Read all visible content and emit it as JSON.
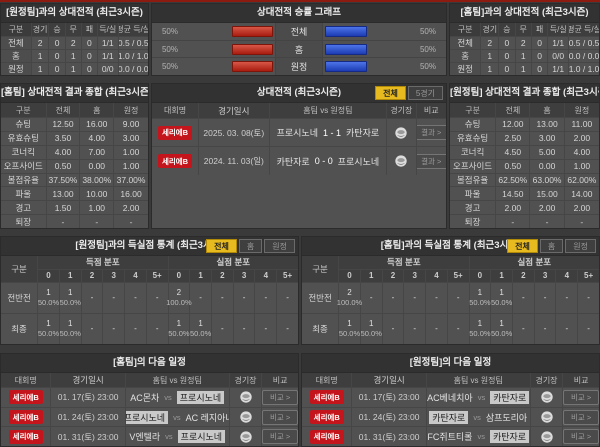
{
  "colors": {
    "separator_red": "#8e1b10",
    "league_badge_red": "#c3151b",
    "bar_red": "#b7271a",
    "bar_blue": "#2b4ecf",
    "tab_active_yellow": "#e7ba1f",
    "team_highlight": "#c9c9c9",
    "panel_bg": "#515151",
    "header_bg": "#323232"
  },
  "record_left": {
    "title": "[원정팀]과의 상대전적 (최근3시즌)",
    "headers": [
      "구분",
      "경기",
      "승",
      "무",
      "패",
      "득/실",
      "평균 득/실"
    ],
    "rows": [
      {
        "label": "전체",
        "v0": "2",
        "v1": "0",
        "v2": "2",
        "v3": "0",
        "v4": "1/1",
        "v5": "0.5 / 0.5"
      },
      {
        "label": "홈",
        "v0": "1",
        "v1": "0",
        "v2": "1",
        "v3": "0",
        "v4": "1/1",
        "v5": "1.0 / 1.0"
      },
      {
        "label": "원정",
        "v0": "1",
        "v1": "0",
        "v2": "1",
        "v3": "0",
        "v4": "0/0",
        "v5": "0.0 / 0.0"
      }
    ]
  },
  "graph": {
    "title": "상대전적 승률 그래프",
    "rows": [
      {
        "label": "전체",
        "left_pct": "50%",
        "right_pct": "50%",
        "left_value": 50,
        "right_value": 50
      },
      {
        "label": "홈",
        "left_pct": "50%",
        "right_pct": "50%",
        "left_value": 50,
        "right_value": 50
      },
      {
        "label": "원정",
        "left_pct": "50%",
        "right_pct": "50%",
        "left_value": 50,
        "right_value": 50
      }
    ]
  },
  "record_right": {
    "title": "[홈팀]과의 상대전적 (최근3시즌)",
    "headers": [
      "구분",
      "경기",
      "승",
      "무",
      "패",
      "득/실",
      "평균 득/실"
    ],
    "rows": [
      {
        "label": "전체",
        "v0": "2",
        "v1": "0",
        "v2": "2",
        "v3": "0",
        "v4": "1/1",
        "v5": "0.5 / 0.5"
      },
      {
        "label": "홈",
        "v0": "1",
        "v1": "0",
        "v2": "1",
        "v3": "0",
        "v4": "0/0",
        "v5": "0.0 / 0.0"
      },
      {
        "label": "원정",
        "v0": "1",
        "v1": "0",
        "v2": "1",
        "v3": "0",
        "v4": "1/1",
        "v5": "1.0 / 1.0"
      }
    ]
  },
  "summary_left": {
    "title": "[홈팀] 상대전적 결과 종합 (최근3시즌 평균)",
    "headers": [
      "구분",
      "전체",
      "홈",
      "원정"
    ],
    "rows": [
      {
        "label": "슈팅",
        "v0": "12.50",
        "v1": "16.00",
        "v2": "9.00"
      },
      {
        "label": "유효슈팅",
        "v0": "3.50",
        "v1": "4.00",
        "v2": "3.00"
      },
      {
        "label": "코너킥",
        "v0": "4.00",
        "v1": "7.00",
        "v2": "1.00"
      },
      {
        "label": "오프사이드",
        "v0": "0.50",
        "v1": "0.00",
        "v2": "1.00"
      },
      {
        "label": "볼점유율",
        "v0": "37.50%",
        "v1": "38.00%",
        "v2": "37.00%"
      },
      {
        "label": "파울",
        "v0": "13.00",
        "v1": "10.00",
        "v2": "16.00"
      },
      {
        "label": "경고",
        "v0": "1.50",
        "v1": "1.00",
        "v2": "2.00"
      },
      {
        "label": "퇴장",
        "v0": "-",
        "v1": "-",
        "v2": "-"
      }
    ]
  },
  "summary_right": {
    "title": "[원정팀] 상대전적 결과 종합 (최근3시즌 평균)",
    "headers": [
      "구분",
      "전체",
      "홈",
      "원정"
    ],
    "rows": [
      {
        "label": "슈팅",
        "v0": "12.00",
        "v1": "13.00",
        "v2": "11.00"
      },
      {
        "label": "유효슈팅",
        "v0": "2.50",
        "v1": "3.00",
        "v2": "2.00"
      },
      {
        "label": "코너킥",
        "v0": "4.50",
        "v1": "5.00",
        "v2": "4.00"
      },
      {
        "label": "오프사이드",
        "v0": "0.50",
        "v1": "0.00",
        "v2": "1.00"
      },
      {
        "label": "볼점유율",
        "v0": "62.50%",
        "v1": "63.00%",
        "v2": "62.00%"
      },
      {
        "label": "파울",
        "v0": "14.50",
        "v1": "15.00",
        "v2": "14.00"
      },
      {
        "label": "경고",
        "v0": "2.00",
        "v1": "2.00",
        "v2": "2.00"
      },
      {
        "label": "퇴장",
        "v0": "-",
        "v1": "-",
        "v2": "-"
      }
    ]
  },
  "h2h": {
    "title": "상대전적 (최근3시즌)",
    "tabs": [
      {
        "label": "전체"
      },
      {
        "label": "5경기"
      }
    ],
    "headers": {
      "league": "대회명",
      "datetime": "경기일시",
      "teams": "홈팀  vs  원정팀",
      "stadium": "경기장",
      "compare": "비교"
    },
    "matches": [
      {
        "league": "세리에B",
        "date": "2025. 03. 08(토)",
        "home": "프로시노네",
        "score": "1 - 1",
        "away": "카탄자로",
        "btn": "결과 >"
      },
      {
        "league": "세리에B",
        "date": "2024. 11. 03(일)",
        "home": "카탄자로",
        "score": "0 - 0",
        "away": "프로시노네",
        "btn": "결과 >"
      }
    ]
  },
  "goals_left": {
    "title": "[원정팀]과의 득실점 통계 (최근3시즌)",
    "tabs": [
      {
        "label": "전체"
      },
      {
        "label": "홈"
      },
      {
        "label": "원정"
      }
    ],
    "corner": "구분",
    "group_scored": "득점 분포",
    "group_conceded": "실점 분포",
    "cols": [
      "0",
      "1",
      "2",
      "3",
      "4",
      "5+"
    ],
    "rows": [
      {
        "label": "전반전",
        "s0": {
          "n": "1",
          "p": "50.0%"
        },
        "s1": {
          "n": "1",
          "p": "50.0%"
        },
        "s2": {
          "n": "-",
          "p": ""
        },
        "s3": {
          "n": "-",
          "p": ""
        },
        "s4": {
          "n": "-",
          "p": ""
        },
        "s5": {
          "n": "-",
          "p": ""
        },
        "c0": {
          "n": "2",
          "p": "100.0%"
        },
        "c1": {
          "n": "-",
          "p": ""
        },
        "c2": {
          "n": "-",
          "p": ""
        },
        "c3": {
          "n": "-",
          "p": ""
        },
        "c4": {
          "n": "-",
          "p": ""
        },
        "c5": {
          "n": "-",
          "p": ""
        }
      },
      {
        "label": "최종",
        "s0": {
          "n": "1",
          "p": "50.0%"
        },
        "s1": {
          "n": "1",
          "p": "50.0%"
        },
        "s2": {
          "n": "-",
          "p": ""
        },
        "s3": {
          "n": "-",
          "p": ""
        },
        "s4": {
          "n": "-",
          "p": ""
        },
        "s5": {
          "n": "-",
          "p": ""
        },
        "c0": {
          "n": "1",
          "p": "50.0%"
        },
        "c1": {
          "n": "1",
          "p": "50.0%"
        },
        "c2": {
          "n": "-",
          "p": ""
        },
        "c3": {
          "n": "-",
          "p": ""
        },
        "c4": {
          "n": "-",
          "p": ""
        },
        "c5": {
          "n": "-",
          "p": ""
        }
      }
    ]
  },
  "goals_right": {
    "title": "[홈팀]과의 득실점 통계 (최근3시즌)",
    "tabs": [
      {
        "label": "전체"
      },
      {
        "label": "홈"
      },
      {
        "label": "원정"
      }
    ],
    "corner": "구분",
    "group_scored": "득점 분포",
    "group_conceded": "실점 분포",
    "cols": [
      "0",
      "1",
      "2",
      "3",
      "4",
      "5+"
    ],
    "rows": [
      {
        "label": "전반전",
        "s0": {
          "n": "2",
          "p": "100.0%"
        },
        "s1": {
          "n": "-",
          "p": ""
        },
        "s2": {
          "n": "-",
          "p": ""
        },
        "s3": {
          "n": "-",
          "p": ""
        },
        "s4": {
          "n": "-",
          "p": ""
        },
        "s5": {
          "n": "-",
          "p": ""
        },
        "c0": {
          "n": "1",
          "p": "50.0%"
        },
        "c1": {
          "n": "1",
          "p": "50.0%"
        },
        "c2": {
          "n": "-",
          "p": ""
        },
        "c3": {
          "n": "-",
          "p": ""
        },
        "c4": {
          "n": "-",
          "p": ""
        },
        "c5": {
          "n": "-",
          "p": ""
        }
      },
      {
        "label": "최종",
        "s0": {
          "n": "1",
          "p": "50.0%"
        },
        "s1": {
          "n": "1",
          "p": "50.0%"
        },
        "s2": {
          "n": "-",
          "p": ""
        },
        "s3": {
          "n": "-",
          "p": ""
        },
        "s4": {
          "n": "-",
          "p": ""
        },
        "s5": {
          "n": "-",
          "p": ""
        },
        "c0": {
          "n": "1",
          "p": "50.0%"
        },
        "c1": {
          "n": "1",
          "p": "50.0%"
        },
        "c2": {
          "n": "-",
          "p": ""
        },
        "c3": {
          "n": "-",
          "p": ""
        },
        "c4": {
          "n": "-",
          "p": ""
        },
        "c5": {
          "n": "-",
          "p": ""
        }
      }
    ]
  },
  "schedule_left": {
    "title": "[홈팀]의 다음 일정",
    "headers": {
      "league": "대회명",
      "datetime": "경기일시",
      "teams": "홈팀  vs  원정팀",
      "stadium": "경기장",
      "compare": "비교"
    },
    "rows": [
      {
        "league": "세리에B",
        "date": "01. 17(토) 23:00",
        "home": "AC몬차",
        "away": "프로시노네",
        "home_hl": false,
        "away_hl": true,
        "btn": "비교 >"
      },
      {
        "league": "세리에B",
        "date": "01. 24(토) 23:00",
        "home": "프로시노네",
        "away": "AC 레지아나",
        "home_hl": true,
        "away_hl": false,
        "btn": "비교 >"
      },
      {
        "league": "세리에B",
        "date": "01. 31(토) 23:00",
        "home": "V엔텔라",
        "away": "프로시노네",
        "home_hl": false,
        "away_hl": true,
        "btn": "비교 >"
      }
    ]
  },
  "schedule_right": {
    "title": "[원정팀]의 다음 일정",
    "headers": {
      "league": "대회명",
      "datetime": "경기일시",
      "teams": "홈팀  vs  원정팀",
      "stadium": "경기장",
      "compare": "비교"
    },
    "rows": [
      {
        "league": "세리에B",
        "date": "01. 17(토) 23:00",
        "home": "AC베네치아",
        "away": "카탄자로",
        "home_hl": false,
        "away_hl": true,
        "btn": "비교 >"
      },
      {
        "league": "세리에B",
        "date": "01. 24(토) 23:00",
        "home": "카탄자로",
        "away": "삼프도리아",
        "home_hl": true,
        "away_hl": false,
        "btn": "비교 >"
      },
      {
        "league": "세리에B",
        "date": "01. 31(토) 23:00",
        "home": "FC쥐트티롤",
        "away": "카탄자로",
        "home_hl": false,
        "away_hl": true,
        "btn": "비교 >"
      }
    ]
  }
}
